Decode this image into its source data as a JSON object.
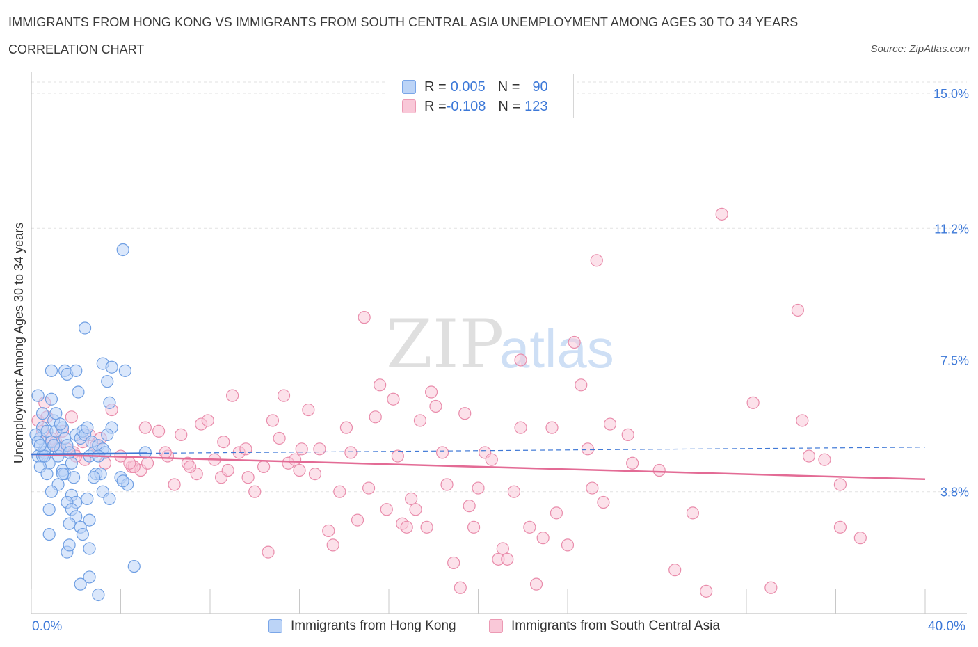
{
  "header": {
    "title": "IMMIGRANTS FROM HONG KONG VS IMMIGRANTS FROM SOUTH CENTRAL ASIA UNEMPLOYMENT AMONG AGES 30 TO 34 YEARS",
    "subtitle": "CORRELATION CHART",
    "source": "Source: ZipAtlas.com"
  },
  "legend": {
    "rows": [
      {
        "r_label": "R = ",
        "r_value": "0.005",
        "n_label": "N = ",
        "n_value": "90"
      },
      {
        "r_label": "R = ",
        "r_value": "-0.108",
        "n_label": "N = ",
        "n_value": "123"
      }
    ]
  },
  "watermark": {
    "part1": "ZIP",
    "part2": "atlas"
  },
  "colors": {
    "blue_fill": "#bcd4f7",
    "blue_stroke": "#6f9fe3",
    "blue_line": "#3f78d6",
    "pink_fill": "#f9c8d8",
    "pink_stroke": "#e98cab",
    "pink_line": "#e36b95",
    "axis_label": "#3c78d8",
    "grid": "#e2e2e2"
  },
  "chart_data": {
    "type": "scatter",
    "title": "IMMIGRANTS FROM HONG KONG VS IMMIGRANTS FROM SOUTH CENTRAL ASIA UNEMPLOYMENT AMONG AGES 30 TO 34 YEARS",
    "xlabel": "",
    "ylabel": "Unemployment Among Ages 30 to 34 years",
    "xlim": [
      0,
      40
    ],
    "ylim": [
      0,
      15
    ],
    "x_tick_labels": [
      "0.0%",
      "40.0%"
    ],
    "y_ticks": [
      3.8,
      7.5,
      11.2,
      15.0
    ],
    "y_tick_labels": [
      "3.8%",
      "7.5%",
      "11.2%",
      "15.0%"
    ],
    "grid": true,
    "legend_position": "top-center",
    "series": [
      {
        "name": "Immigrants from Hong Kong",
        "trend": {
          "x": [
            0,
            5.2
          ],
          "y": [
            4.85,
            4.88
          ],
          "dashed_extension_to": [
            40,
            5.05
          ]
        },
        "points": [
          [
            0.3,
            4.8
          ],
          [
            0.4,
            5.3
          ],
          [
            0.5,
            5.6
          ],
          [
            0.6,
            5.0
          ],
          [
            0.2,
            5.4
          ],
          [
            0.3,
            6.5
          ],
          [
            0.5,
            6.0
          ],
          [
            0.7,
            5.5
          ],
          [
            0.8,
            4.6
          ],
          [
            0.4,
            4.5
          ],
          [
            0.9,
            5.2
          ],
          [
            1.0,
            5.8
          ],
          [
            1.1,
            5.5
          ],
          [
            0.6,
            4.9
          ],
          [
            0.3,
            5.2
          ],
          [
            0.5,
            4.8
          ],
          [
            0.7,
            4.3
          ],
          [
            1.2,
            4.8
          ],
          [
            1.3,
            5.0
          ],
          [
            1.4,
            5.6
          ],
          [
            1.5,
            5.3
          ],
          [
            0.9,
            6.4
          ],
          [
            1.1,
            6.0
          ],
          [
            1.3,
            5.7
          ],
          [
            1.4,
            4.4
          ],
          [
            1.5,
            4.3
          ],
          [
            1.6,
            5.1
          ],
          [
            1.8,
            4.6
          ],
          [
            1.7,
            4.9
          ],
          [
            2.0,
            5.4
          ],
          [
            2.2,
            5.3
          ],
          [
            2.3,
            5.5
          ],
          [
            2.4,
            5.4
          ],
          [
            2.5,
            5.6
          ],
          [
            2.6,
            4.8
          ],
          [
            2.7,
            5.2
          ],
          [
            2.8,
            4.9
          ],
          [
            3.0,
            5.1
          ],
          [
            3.2,
            5.0
          ],
          [
            3.3,
            4.9
          ],
          [
            0.9,
            7.2
          ],
          [
            1.5,
            7.2
          ],
          [
            1.6,
            7.1
          ],
          [
            2.0,
            7.2
          ],
          [
            2.1,
            6.6
          ],
          [
            2.4,
            8.4
          ],
          [
            3.2,
            7.4
          ],
          [
            3.6,
            7.3
          ],
          [
            4.2,
            7.2
          ],
          [
            3.4,
            6.9
          ],
          [
            3.5,
            6.3
          ],
          [
            3.6,
            5.6
          ],
          [
            4.1,
            10.6
          ],
          [
            1.2,
            4.0
          ],
          [
            1.8,
            3.7
          ],
          [
            2.0,
            3.5
          ],
          [
            2.5,
            3.6
          ],
          [
            3.2,
            3.8
          ],
          [
            0.9,
            3.8
          ],
          [
            0.8,
            3.3
          ],
          [
            1.6,
            3.5
          ],
          [
            1.8,
            3.3
          ],
          [
            2.0,
            3.1
          ],
          [
            2.6,
            3.0
          ],
          [
            1.7,
            2.9
          ],
          [
            2.2,
            2.8
          ],
          [
            2.3,
            2.6
          ],
          [
            0.8,
            2.6
          ],
          [
            2.6,
            2.2
          ],
          [
            1.6,
            2.1
          ],
          [
            2.6,
            1.4
          ],
          [
            2.2,
            1.2
          ],
          [
            3.0,
            0.9
          ],
          [
            4.6,
            1.7
          ],
          [
            1.7,
            2.3
          ],
          [
            3.5,
            3.6
          ],
          [
            4.0,
            4.2
          ],
          [
            4.3,
            4.0
          ],
          [
            5.1,
            4.9
          ],
          [
            3.4,
            5.4
          ],
          [
            2.9,
            4.3
          ],
          [
            3.1,
            4.3
          ],
          [
            1.9,
            4.2
          ],
          [
            1.4,
            4.3
          ],
          [
            0.6,
            4.8
          ],
          [
            1.0,
            5.1
          ],
          [
            2.8,
            4.2
          ],
          [
            4.1,
            4.1
          ],
          [
            3.0,
            4.8
          ],
          [
            0.4,
            5.1
          ]
        ]
      },
      {
        "name": "Immigrants from South Central Asia",
        "trend": {
          "x": [
            0,
            40
          ],
          "y": [
            4.85,
            4.15
          ]
        },
        "points": [
          [
            0.3,
            5.8
          ],
          [
            0.5,
            5.5
          ],
          [
            0.7,
            5.9
          ],
          [
            0.9,
            5.3
          ],
          [
            1.1,
            5.2
          ],
          [
            1.4,
            5.5
          ],
          [
            1.6,
            5.0
          ],
          [
            1.9,
            4.9
          ],
          [
            2.3,
            5.2
          ],
          [
            2.6,
            5.4
          ],
          [
            2.9,
            5.1
          ],
          [
            3.3,
            4.6
          ],
          [
            3.6,
            6.1
          ],
          [
            4.0,
            4.8
          ],
          [
            4.5,
            4.5
          ],
          [
            4.9,
            4.4
          ],
          [
            5.2,
            4.6
          ],
          [
            5.7,
            5.5
          ],
          [
            6.1,
            4.8
          ],
          [
            6.4,
            4.0
          ],
          [
            6.7,
            5.4
          ],
          [
            7.0,
            4.6
          ],
          [
            7.4,
            4.3
          ],
          [
            7.6,
            5.7
          ],
          [
            7.9,
            5.8
          ],
          [
            8.2,
            4.7
          ],
          [
            8.5,
            4.2
          ],
          [
            8.8,
            4.4
          ],
          [
            9.0,
            6.5
          ],
          [
            9.3,
            4.9
          ],
          [
            9.7,
            4.2
          ],
          [
            10.0,
            3.8
          ],
          [
            10.4,
            4.5
          ],
          [
            10.6,
            2.1
          ],
          [
            10.8,
            5.8
          ],
          [
            11.1,
            5.3
          ],
          [
            11.3,
            6.5
          ],
          [
            11.5,
            4.6
          ],
          [
            11.8,
            4.7
          ],
          [
            12.1,
            5.0
          ],
          [
            12.4,
            6.1
          ],
          [
            12.7,
            4.3
          ],
          [
            12.9,
            5.0
          ],
          [
            13.3,
            2.7
          ],
          [
            13.5,
            2.3
          ],
          [
            13.8,
            3.8
          ],
          [
            14.1,
            5.6
          ],
          [
            14.3,
            4.9
          ],
          [
            14.6,
            3.0
          ],
          [
            14.9,
            8.7
          ],
          [
            15.1,
            3.9
          ],
          [
            15.4,
            5.9
          ],
          [
            15.6,
            6.8
          ],
          [
            15.9,
            3.3
          ],
          [
            16.2,
            6.4
          ],
          [
            16.4,
            4.8
          ],
          [
            16.6,
            2.9
          ],
          [
            16.8,
            2.8
          ],
          [
            17.0,
            3.6
          ],
          [
            17.2,
            3.3
          ],
          [
            17.4,
            5.8
          ],
          [
            17.7,
            2.8
          ],
          [
            17.9,
            6.6
          ],
          [
            18.1,
            6.2
          ],
          [
            18.4,
            4.9
          ],
          [
            18.6,
            4.0
          ],
          [
            18.9,
            1.8
          ],
          [
            19.2,
            1.1
          ],
          [
            19.4,
            6.0
          ],
          [
            19.6,
            3.4
          ],
          [
            19.8,
            2.8
          ],
          [
            20.0,
            3.9
          ],
          [
            20.3,
            4.9
          ],
          [
            20.6,
            4.7
          ],
          [
            20.9,
            1.9
          ],
          [
            21.1,
            2.2
          ],
          [
            21.3,
            1.9
          ],
          [
            21.6,
            3.8
          ],
          [
            21.9,
            5.6
          ],
          [
            21.9,
            7.5
          ],
          [
            22.3,
            2.8
          ],
          [
            22.6,
            1.2
          ],
          [
            22.9,
            2.5
          ],
          [
            23.3,
            5.6
          ],
          [
            23.5,
            3.2
          ],
          [
            24.0,
            2.3
          ],
          [
            24.3,
            8.0
          ],
          [
            24.6,
            6.8
          ],
          [
            24.9,
            5.0
          ],
          [
            25.1,
            3.9
          ],
          [
            25.3,
            10.3
          ],
          [
            25.6,
            3.5
          ],
          [
            25.9,
            5.7
          ],
          [
            26.7,
            5.4
          ],
          [
            26.9,
            4.6
          ],
          [
            28.1,
            4.4
          ],
          [
            28.8,
            1.6
          ],
          [
            29.6,
            3.2
          ],
          [
            30.2,
            1.0
          ],
          [
            30.9,
            11.6
          ],
          [
            32.3,
            6.3
          ],
          [
            33.1,
            1.1
          ],
          [
            34.3,
            8.9
          ],
          [
            34.5,
            5.8
          ],
          [
            34.8,
            4.8
          ],
          [
            35.5,
            4.7
          ],
          [
            36.2,
            4.0
          ],
          [
            36.2,
            2.8
          ],
          [
            37.1,
            2.5
          ],
          [
            5.1,
            5.6
          ],
          [
            3.1,
            5.3
          ],
          [
            2.4,
            4.7
          ],
          [
            1.8,
            5.9
          ],
          [
            0.6,
            6.3
          ],
          [
            1.2,
            5.0
          ],
          [
            4.6,
            4.5
          ],
          [
            6.0,
            4.9
          ],
          [
            8.6,
            5.2
          ],
          [
            9.6,
            5.0
          ],
          [
            12.0,
            4.4
          ],
          [
            2.0,
            4.8
          ],
          [
            4.4,
            4.6
          ],
          [
            7.1,
            4.5
          ]
        ]
      }
    ]
  },
  "axes": {
    "ylabel": "Unemployment Among Ages 30 to 34 years",
    "x_min_label": "0.0%",
    "x_max_label": "40.0%",
    "y_tick_labels": [
      "3.8%",
      "7.5%",
      "11.2%",
      "15.0%"
    ]
  },
  "bottom_legend": {
    "items": [
      {
        "label": "Immigrants from Hong Kong"
      },
      {
        "label": "Immigrants from South Central Asia"
      }
    ]
  }
}
